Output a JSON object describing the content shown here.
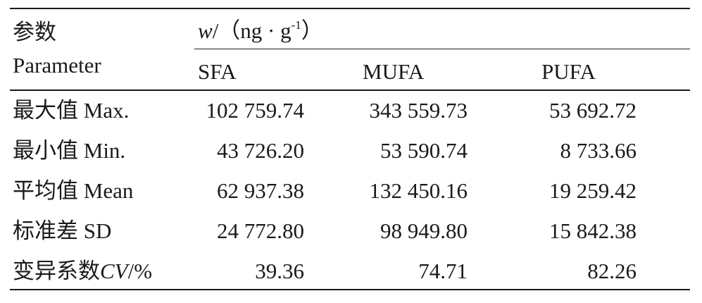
{
  "table": {
    "param_zh": "参数",
    "param_en": "Parameter",
    "unit_symbol": "w",
    "unit_text": "/（ng · g",
    "unit_sup": "-1",
    "unit_close": "）",
    "columns": [
      "SFA",
      "MUFA",
      "PUFA"
    ],
    "rows": [
      {
        "label_zh": "最大值",
        "label_en": "Max.",
        "label_italic": "",
        "label_suffix": "",
        "values": [
          "102 759.74",
          "343 559.73",
          "53 692.72"
        ]
      },
      {
        "label_zh": "最小值",
        "label_en": "Min.",
        "label_italic": "",
        "label_suffix": "",
        "values": [
          "43 726.20",
          "53 590.74",
          "8 733.66"
        ]
      },
      {
        "label_zh": "平均值",
        "label_en": "Mean",
        "label_italic": "",
        "label_suffix": "",
        "values": [
          "62 937.38",
          "132 450.16",
          "19 259.42"
        ]
      },
      {
        "label_zh": "标准差",
        "label_en": "SD",
        "label_italic": "",
        "label_suffix": "",
        "values": [
          "24 772.80",
          "98 949.80",
          "15 842.38"
        ]
      },
      {
        "label_zh": "变异系数",
        "label_en": "",
        "label_italic": "CV",
        "label_suffix": "/%",
        "values": [
          "39.36",
          "74.71",
          "82.26"
        ]
      }
    ]
  }
}
